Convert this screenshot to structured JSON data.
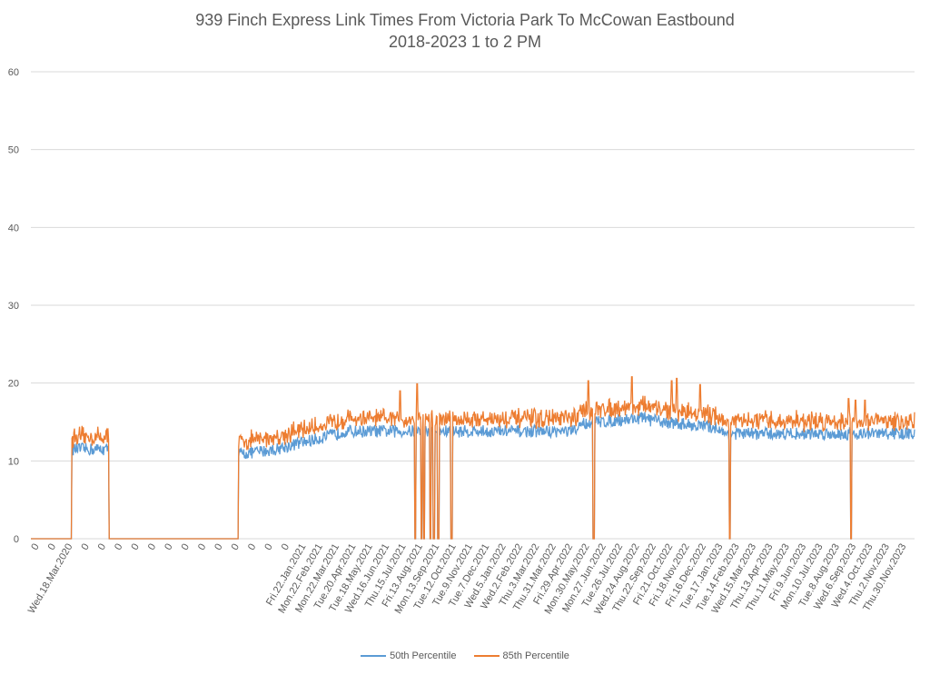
{
  "chart_data": {
    "type": "line",
    "title": "939 Finch Express Link Times From Victoria Park To McCowan Eastbound",
    "subtitle": "2018-2023 1 to 2 PM",
    "xlabel": "",
    "ylabel": "",
    "ylim": [
      0,
      60
    ],
    "yticks": [
      0,
      10,
      20,
      30,
      40,
      50,
      60
    ],
    "grid": true,
    "legend": "bottom",
    "x_tick_labels": [
      "0",
      "0",
      "Wed.18.Mar.2020",
      "0",
      "0",
      "0",
      "0",
      "0",
      "0",
      "0",
      "0",
      "0",
      "0",
      "0",
      "0",
      "0",
      "Fri.22.Jan.2021",
      "Mon.22.Feb.2021",
      "Mon.22.Mar.2021",
      "Tue.20.Apr.2021",
      "Tue.18.May.2021",
      "Wed.16.Jun.2021",
      "Thu.15.Jul.2021",
      "Fri.13.Aug.2021",
      "Mon.13.Sep.2021",
      "Tue.12.Oct.2021",
      "Tue.9.Nov.2021",
      "Tue.7.Dec.2021",
      "Wed.5.Jan.2022",
      "Wed.2.Feb.2022",
      "Thu.3.Mar.2022",
      "Thu.31.Mar.2022",
      "Fri.29.Apr.2022",
      "Mon.30.May.2022",
      "Mon.27.Jun.2022",
      "Tue.26.Jul.2022",
      "Wed.24.Aug.2022",
      "Thu.22.Sep.2022",
      "Fri.21.Oct.2022",
      "Fri.18.Nov.2022",
      "Fri.16.Dec.2022",
      "Tue.17.Jan.2023",
      "Tue.14.Feb.2023",
      "Wed.15.Mar.2023",
      "Thu.13.Apr.2023",
      "Thu.11.May.2023",
      "Fri.9.Jun.2023",
      "Mon.10.Jul.2023",
      "Tue.8.Aug.2023",
      "Wed.6.Sep.2023",
      "Wed.4.Oct.2023",
      "Thu.2.Nov.2023",
      "Thu.30.Nov.2023"
    ],
    "series": [
      {
        "name": "50th Percentile",
        "color": "#5B9BD5"
      },
      {
        "name": "85th Percentile",
        "color": "#ED7D31"
      }
    ]
  }
}
